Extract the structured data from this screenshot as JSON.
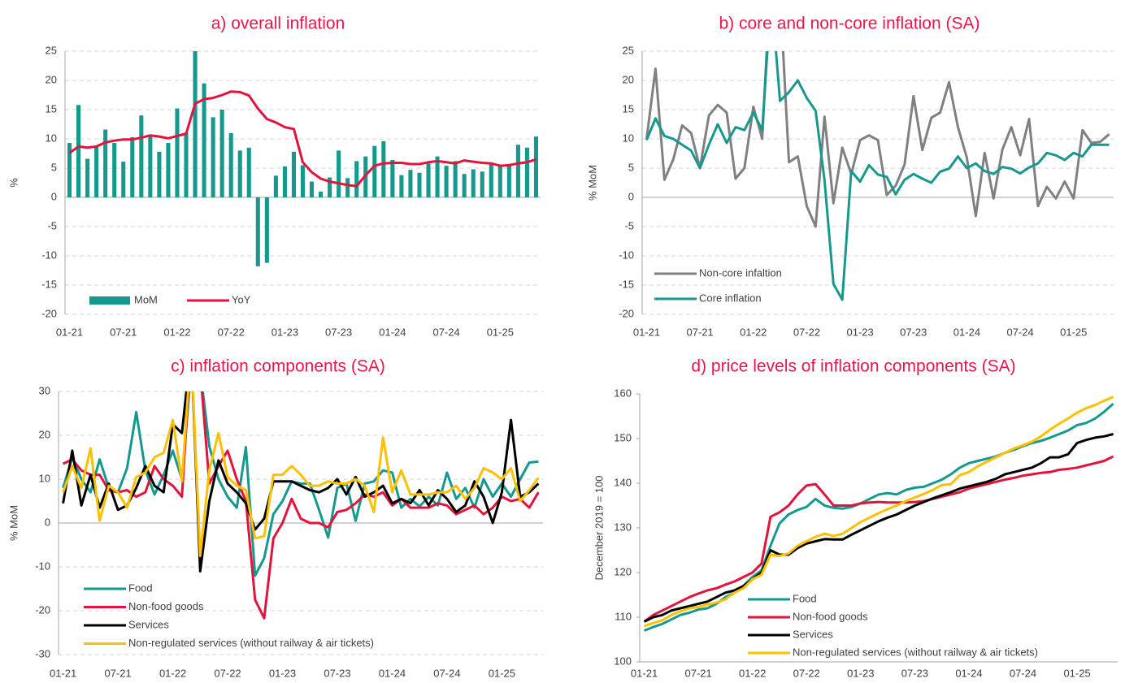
{
  "chart_data": [
    {
      "type": "bar",
      "title": "a) overall inflation",
      "y_label": "%",
      "categories": [
        "01-21",
        null,
        null,
        null,
        null,
        null,
        "07-21",
        null,
        null,
        null,
        null,
        null,
        "01-22",
        null,
        null,
        null,
        null,
        null,
        "07-22",
        null,
        null,
        null,
        null,
        null,
        "01-23",
        null,
        null,
        null,
        null,
        null,
        "07-23",
        null,
        null,
        null,
        null,
        null,
        "01-24",
        null,
        null,
        null,
        null,
        null,
        "07-24",
        null,
        null,
        null,
        null,
        null,
        "01-25",
        null,
        null,
        null,
        null
      ],
      "ylim": [
        -20,
        25
      ],
      "yticks": [
        -20,
        -15,
        -10,
        -5,
        0,
        5,
        10,
        15,
        20,
        25
      ],
      "grid": true,
      "legend": "lower left",
      "series": [
        {
          "name": "MoM",
          "type": "bar",
          "color": "#15998f",
          "values": [
            9.3,
            15.8,
            6.6,
            8.6,
            11.6,
            9.3,
            6.1,
            10.3,
            14,
            10.5,
            7.8,
            9.3,
            15.2,
            11,
            25.5,
            19.5,
            13.7,
            15,
            11,
            8,
            8.5,
            -11.8,
            -11.2,
            3.7,
            5.3,
            7.8,
            5.5,
            2.7,
            1,
            3.4,
            8,
            3.3,
            6.2,
            7,
            8.8,
            9.6,
            6.4,
            3.8,
            4.7,
            4.2,
            5.8,
            7,
            5.4,
            6.2,
            4,
            4.8,
            4.4,
            5.7,
            5.3,
            5.5,
            9,
            8.5,
            10.4
          ]
        },
        {
          "name": "YoY",
          "type": "line",
          "color": "#e3143c",
          "values": [
            7.6,
            8.7,
            8.5,
            8.7,
            9.4,
            9.7,
            9.9,
            9.9,
            10.2,
            10.6,
            10.4,
            10.1,
            10.5,
            10.9,
            16,
            16.8,
            17,
            17.5,
            18.1,
            18,
            17.4,
            15.2,
            13.4,
            12.8,
            12,
            11.7,
            6,
            4.3,
            3.2,
            2.7,
            2.4,
            2.1,
            1.9,
            3.8,
            5.4,
            5.8,
            5.9,
            5.9,
            5.7,
            5.7,
            6,
            6.2,
            6,
            5.8,
            6.3,
            6.1,
            5.9,
            5.8,
            5.4,
            5.5,
            5.8,
            6,
            6.5
          ]
        }
      ]
    },
    {
      "type": "line",
      "title": "b) core and non-core inflation (SA)",
      "y_label": "% MoM",
      "categories": [
        "01-21",
        null,
        null,
        null,
        null,
        null,
        "07-21",
        null,
        null,
        null,
        null,
        null,
        "01-22",
        null,
        null,
        null,
        null,
        null,
        "07-22",
        null,
        null,
        null,
        null,
        null,
        "01-23",
        null,
        null,
        null,
        null,
        null,
        "07-23",
        null,
        null,
        null,
        null,
        null,
        "01-24",
        null,
        null,
        null,
        null,
        null,
        "07-24",
        null,
        null,
        null,
        null,
        null,
        "01-25",
        null,
        null,
        null,
        null
      ],
      "ylim": [
        -20,
        25
      ],
      "yticks": [
        -20,
        -15,
        -10,
        -5,
        0,
        5,
        10,
        15,
        20,
        25
      ],
      "grid": true,
      "legend": "lower left",
      "series": [
        {
          "name": "Non-core infaltion",
          "color": "#808080",
          "values": [
            10,
            22,
            3,
            6.5,
            12.3,
            11,
            5,
            14,
            15.8,
            14.5,
            3.2,
            5,
            15.5,
            10,
            40,
            35,
            6,
            7,
            -1.5,
            -5,
            13.8,
            -1,
            8.5,
            4,
            9.8,
            10.6,
            9.8,
            0.4,
            2,
            5.6,
            17.3,
            8.1,
            13.6,
            14.5,
            19.7,
            12,
            6.8,
            -3.2,
            7.6,
            -0.2,
            8.2,
            12,
            7.2,
            13.4,
            -1.5,
            1.8,
            -0.2,
            2.7,
            -0.2,
            11.5,
            9.3,
            9.5,
            10.8
          ]
        },
        {
          "name": "Core inflation",
          "color": "#15998f",
          "values": [
            9.8,
            13.5,
            10.5,
            10,
            9,
            8,
            5,
            9,
            12.5,
            9.3,
            12,
            11.5,
            14.5,
            11.5,
            35,
            16.5,
            18,
            20,
            17,
            14.8,
            3,
            -14.8,
            -17.5,
            4.5,
            2.7,
            5.5,
            3.9,
            3.5,
            0.5,
            3,
            4,
            3.2,
            2.5,
            4.4,
            4.9,
            7,
            5,
            5.8,
            4.5,
            4,
            5.2,
            4.9,
            4.1,
            5.1,
            5.8,
            7.6,
            7.2,
            6.4,
            7.6,
            7,
            9,
            9,
            9
          ]
        }
      ]
    },
    {
      "type": "line",
      "title": "c) inflation components (SA)",
      "y_label": "% MoM",
      "categories": [
        "01-21",
        null,
        null,
        null,
        null,
        null,
        "07-21",
        null,
        null,
        null,
        null,
        null,
        "01-22",
        null,
        null,
        null,
        null,
        null,
        "07-22",
        null,
        null,
        null,
        null,
        null,
        "01-23",
        null,
        null,
        null,
        null,
        null,
        "07-23",
        null,
        null,
        null,
        null,
        null,
        "01-24",
        null,
        null,
        null,
        null,
        null,
        "07-24",
        null,
        null,
        null,
        null,
        null,
        "01-25",
        null,
        null,
        null,
        null
      ],
      "ylim": [
        -30,
        30
      ],
      "yticks": [
        -30,
        -20,
        -10,
        0,
        10,
        20,
        30
      ],
      "grid": true,
      "legend": "lower left",
      "series": [
        {
          "name": "Food",
          "color": "#15998f",
          "values": [
            8,
            15,
            10,
            7,
            14.5,
            8,
            7,
            12.5,
            25.3,
            12,
            6.5,
            11,
            16.5,
            10,
            35,
            35,
            17.5,
            10,
            6,
            3.5,
            17.3,
            -12,
            -8,
            2,
            5,
            9.5,
            9,
            9,
            3,
            -3.3,
            8,
            9,
            0.5,
            9,
            9.5,
            12,
            11.5,
            3.5,
            5.5,
            3.8,
            6,
            4,
            11.5,
            5.5,
            8,
            3.5,
            10,
            6,
            9,
            6,
            10,
            13.8,
            14
          ]
        },
        {
          "name": "Non-food goods",
          "color": "#e3143c",
          "values": [
            13.5,
            14.5,
            12,
            11,
            11,
            7.5,
            7,
            7.5,
            6,
            7,
            13,
            10,
            8.5,
            6,
            40,
            35,
            9,
            13,
            16.5,
            10,
            5,
            -17.5,
            -21.7,
            -3.5,
            0,
            5.5,
            1,
            0,
            0,
            -1,
            2.5,
            3,
            4.5,
            6.5,
            6,
            7,
            4,
            5.5,
            3.5,
            3.5,
            3.5,
            4.5,
            4,
            2,
            3,
            4,
            2,
            3.5,
            6,
            5,
            5.5,
            3.5,
            7
          ]
        },
        {
          "name": "Services",
          "color": "#000000",
          "values": [
            4.5,
            16.5,
            4,
            11,
            3.5,
            9,
            3,
            4,
            8,
            13,
            8.5,
            7,
            22.5,
            20.5,
            40,
            -11,
            5,
            14.3,
            9,
            7,
            4.5,
            -1.5,
            1,
            9.5,
            9.5,
            9.5,
            8.5,
            7.5,
            7,
            8,
            10,
            6.5,
            10.5,
            6,
            7,
            8.5,
            4.5,
            5.5,
            4.5,
            7.5,
            4,
            7.5,
            5.5,
            2.5,
            4,
            9.5,
            6,
            0,
            7,
            23.5,
            6,
            7,
            9
          ]
        },
        {
          "name": "Non-regulated services (without railway & air tickets)",
          "color": "#ffc000",
          "values": [
            7,
            13,
            8,
            17,
            0.5,
            8.5,
            7,
            3.5,
            10.5,
            11.5,
            15,
            16,
            23.5,
            9.5,
            40,
            -7.5,
            12,
            20.5,
            10.5,
            8.5,
            7.5,
            -3.5,
            -3,
            11,
            11,
            13,
            11,
            8.5,
            8.5,
            9.5,
            9,
            9,
            10,
            8.5,
            2.5,
            19.5,
            7,
            12,
            6.5,
            6.5,
            6.5,
            7,
            7,
            8.5,
            5.5,
            8,
            12.5,
            11.5,
            10,
            12.5,
            5,
            7.5,
            10.3
          ]
        }
      ]
    },
    {
      "type": "line",
      "title": "d) price levels of inflation components (SA)",
      "y_label": "December 2019 = 100",
      "categories": [
        "01-21",
        null,
        null,
        null,
        null,
        null,
        "07-21",
        null,
        null,
        null,
        null,
        null,
        "01-22",
        null,
        null,
        null,
        null,
        null,
        "07-22",
        null,
        null,
        null,
        null,
        null,
        "01-23",
        null,
        null,
        null,
        null,
        null,
        "07-23",
        null,
        null,
        null,
        null,
        null,
        "01-24",
        null,
        null,
        null,
        null,
        null,
        "07-24",
        null,
        null,
        null,
        null,
        null,
        "01-25",
        null,
        null,
        null,
        null
      ],
      "ylim": [
        100,
        160
      ],
      "yticks": [
        100,
        110,
        120,
        130,
        140,
        150,
        160
      ],
      "grid": false,
      "legend": "lower right",
      "series": [
        {
          "name": "Food",
          "color": "#15998f",
          "values": [
            107,
            107.8,
            108.5,
            109.5,
            110.5,
            111,
            111.7,
            112,
            113,
            114.5,
            115.5,
            117,
            119,
            120.5,
            126,
            131,
            133,
            134,
            134.7,
            136.5,
            135,
            134.5,
            134.3,
            134.7,
            135.5,
            136.5,
            137.5,
            137.8,
            137.5,
            138.5,
            139,
            139.2,
            140,
            140.8,
            142,
            143.5,
            144.5,
            145,
            145.5,
            146,
            146.8,
            147.5,
            148.3,
            149,
            149.5,
            150.2,
            151,
            151.8,
            153,
            153.5,
            154.5,
            156,
            157.8
          ]
        },
        {
          "name": "Non-food goods",
          "color": "#e3143c",
          "values": [
            109,
            110.5,
            111.5,
            112.5,
            113.5,
            114.5,
            115.3,
            116,
            116.5,
            117.3,
            118,
            119,
            120,
            122,
            132.5,
            133.5,
            135,
            137.5,
            139.5,
            139.8,
            137.5,
            135,
            135,
            135,
            135.5,
            135.7,
            135.8,
            135.7,
            135.7,
            135.7,
            135.8,
            136,
            136.5,
            137,
            137.5,
            138,
            138.8,
            139.3,
            139.8,
            140.3,
            140.8,
            141.2,
            141.7,
            142,
            142.3,
            142.5,
            143,
            143.2,
            143.5,
            144,
            144.5,
            145,
            146
          ]
        },
        {
          "name": "Services",
          "color": "#000000",
          "values": [
            109,
            110,
            110.5,
            111.5,
            112,
            112.5,
            113,
            113.5,
            114.5,
            115.5,
            116,
            117,
            118.5,
            120,
            125,
            124,
            124,
            125.5,
            126.5,
            127,
            127.5,
            127.4,
            127.4,
            128.5,
            129.5,
            130.5,
            131.5,
            132.3,
            133,
            134,
            135,
            135.8,
            136.6,
            137.3,
            138,
            138.8,
            139.3,
            139.8,
            140.3,
            141,
            142,
            142.5,
            143,
            143.5,
            144.5,
            145.8,
            145.8,
            146.5,
            149,
            149.7,
            150.2,
            150.5,
            151
          ]
        },
        {
          "name": "Non-regulated services (without railway & air tickets)",
          "color": "#ffc000",
          "values": [
            108,
            108.7,
            109.3,
            110.5,
            111.3,
            112,
            112.3,
            112.8,
            113.3,
            114,
            115.5,
            116.5,
            118.5,
            119.5,
            124,
            123.7,
            124.3,
            126,
            127,
            128,
            128.7,
            128.2,
            128.7,
            130,
            131.3,
            132.3,
            133.3,
            134.2,
            135,
            136,
            136.8,
            137.6,
            138.5,
            139.6,
            139.8,
            141.8,
            142.5,
            143.8,
            144.8,
            145.8,
            146.8,
            147.8,
            148.5,
            149.3,
            150.5,
            152,
            153.3,
            154.5,
            155.8,
            156.8,
            157.5,
            158.5,
            159.3
          ]
        }
      ]
    }
  ]
}
